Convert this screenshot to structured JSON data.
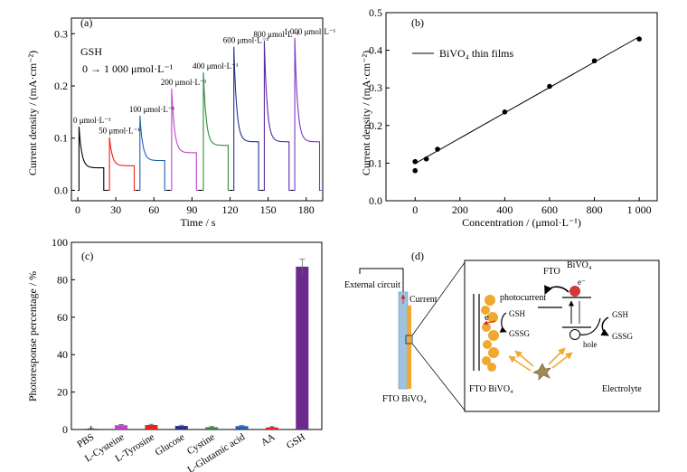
{
  "chart_data": [
    {
      "panel": "(a)",
      "type": "line",
      "xlabel": "Time / s",
      "ylabel": "Current density / (mA·cm⁻²)",
      "xlim": [
        -5,
        193
      ],
      "ylim": [
        -0.02,
        0.33
      ],
      "xticks": [
        0,
        30,
        60,
        90,
        120,
        150,
        180
      ],
      "yticks": [
        0.0,
        0.1,
        0.2,
        0.3
      ],
      "ytick_labels": [
        "0.0",
        "0.1",
        "0.2",
        "0.3"
      ],
      "annotations": [
        "GSH",
        "0 → 1 000 μmol·L⁻¹"
      ],
      "series": [
        {
          "label": "0 μmol·L⁻¹",
          "color": "#000000",
          "t0": 0,
          "peak": 0.122,
          "plateau": 0.043
        },
        {
          "label": "50 μmol·L⁻¹",
          "color": "#e8211b",
          "t0": 24,
          "peak": 0.102,
          "plateau": 0.047
        },
        {
          "label": "100 μmol·L⁻¹",
          "color": "#1f5fb0",
          "t0": 48,
          "peak": 0.143,
          "plateau": 0.057
        },
        {
          "label": "200 μmol·L⁻¹",
          "color": "#c042c8",
          "t0": 73,
          "peak": 0.195,
          "plateau": 0.072
        },
        {
          "label": "400 μmol·L⁻¹",
          "color": "#2e8b3a",
          "t0": 98,
          "peak": 0.226,
          "plateau": 0.086
        },
        {
          "label": "600 μmol·L⁻¹",
          "color": "#26328a",
          "t0": 122,
          "peak": 0.275,
          "plateau": 0.093
        },
        {
          "label": "800 μmol·L⁻¹",
          "color": "#5a2a9e",
          "t0": 146,
          "peak": 0.287,
          "plateau": 0.093
        },
        {
          "label": "1 000 μmol·L⁻¹",
          "color": "#7a35c8",
          "t0": 170,
          "peak": 0.292,
          "plateau": 0.093
        }
      ]
    },
    {
      "panel": "(b)",
      "type": "scatter",
      "xlabel": "Concentration / (μmol·L⁻¹)",
      "ylabel": "Current density / (mA·cm⁻²)",
      "xlim": [
        -130,
        1080
      ],
      "ylim": [
        0.0,
        0.5
      ],
      "xticks": [
        0,
        200,
        400,
        600,
        800,
        1000
      ],
      "xtick_labels": [
        "0",
        "200",
        "400",
        "600",
        "800",
        "1 000"
      ],
      "yticks": [
        0.0,
        0.1,
        0.2,
        0.3,
        0.4,
        0.5
      ],
      "ytick_labels": [
        "0.0",
        "0.1",
        "0.2",
        "0.3",
        "0.4",
        "0.5"
      ],
      "legend": "BiVO₄ thin films",
      "x": [
        0,
        0,
        50,
        100,
        400,
        600,
        800,
        1000
      ],
      "y": [
        0.08,
        0.104,
        0.111,
        0.137,
        0.236,
        0.304,
        0.372,
        0.43
      ],
      "fit_line": {
        "x": [
          0,
          1000
        ],
        "y": [
          0.099,
          0.436
        ]
      }
    },
    {
      "panel": "(c)",
      "type": "bar",
      "ylabel": "Photoresponse percentage / %",
      "ylim": [
        0,
        100
      ],
      "yticks": [
        0,
        20,
        40,
        60,
        80,
        100
      ],
      "categories": [
        "PBS",
        "L-Cysteine",
        "L-Tyrosine",
        "Glucose",
        "Cystine",
        "L-Glutamic acid",
        "AA",
        "GSH"
      ],
      "values": [
        0.3,
        2.3,
        2.4,
        1.9,
        1.2,
        1.8,
        1.1,
        87.0
      ],
      "errors": [
        0.2,
        0.4,
        0.4,
        0.4,
        0.3,
        0.4,
        0.3,
        4.0
      ],
      "colors": [
        "#000000",
        "#c042c8",
        "#e8211b",
        "#26328a",
        "#2e8b3a",
        "#1f5fb0",
        "#e8211b",
        "#6a2a8e"
      ]
    }
  ],
  "diagram": {
    "panel": "(d)",
    "external_circuit": "External circuit",
    "current": "Current",
    "fto_bivo4_bottom": "FTO BiVO₄",
    "fto_bivo4_inset": "FTO BiVO₄",
    "fto": "FTO",
    "bivo4": "BiVO₄",
    "electron": "e⁻",
    "e": "e",
    "photocurrent": "photocurrent",
    "gsh_left": "GSH",
    "gssg_left": "GSSG",
    "gsh_right": "GSH",
    "gssg_right": "GSSG",
    "hole": "hole",
    "electrolyte": "Electrolyte"
  }
}
